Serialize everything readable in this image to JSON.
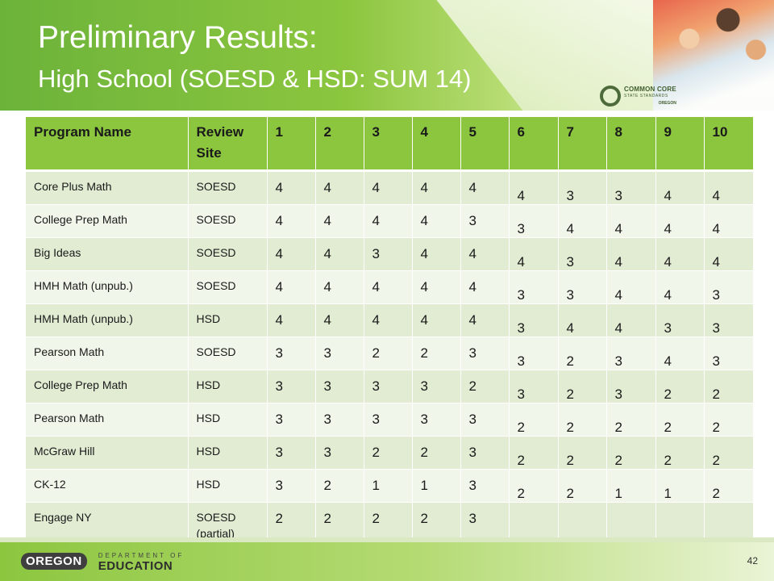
{
  "slide": {
    "title": "Preliminary Results:",
    "subtitle": "High School (SOESD & HSD: SUM 14)",
    "number": "42"
  },
  "ccss_logo": {
    "line1": "COMMON CORE",
    "line2": "STATE STANDARDS",
    "line3": "OREGON"
  },
  "footer_logo": {
    "state": "OREGON",
    "dept_line": "DEPARTMENT OF",
    "edu_line": "EDUCATION"
  },
  "table": {
    "headers": [
      "Program Name",
      "Review Site",
      "1",
      "2",
      "3",
      "4",
      "5",
      "6",
      "7",
      "8",
      "9",
      "10"
    ],
    "rows": [
      {
        "program": "Core Plus Math",
        "site": "SOESD",
        "scores": [
          "4",
          "4",
          "4",
          "4",
          "4",
          "4",
          "3",
          "3",
          "4",
          "4"
        ]
      },
      {
        "program": "College Prep Math",
        "site": "SOESD",
        "scores": [
          "4",
          "4",
          "4",
          "4",
          "3",
          "3",
          "4",
          "4",
          "4",
          "4"
        ]
      },
      {
        "program": "Big Ideas",
        "site": "SOESD",
        "scores": [
          "4",
          "4",
          "3",
          "4",
          "4",
          "4",
          "3",
          "4",
          "4",
          "4"
        ]
      },
      {
        "program": "HMH Math (unpub.)",
        "site": "SOESD",
        "scores": [
          "4",
          "4",
          "4",
          "4",
          "4",
          "3",
          "3",
          "4",
          "4",
          "3"
        ]
      },
      {
        "program": "HMH Math (unpub.)",
        "site": "HSD",
        "scores": [
          "4",
          "4",
          "4",
          "4",
          "4",
          "3",
          "4",
          "4",
          "3",
          "3"
        ]
      },
      {
        "program": "Pearson Math",
        "site": "SOESD",
        "scores": [
          "3",
          "3",
          "2",
          "2",
          "3",
          "3",
          "2",
          "3",
          "4",
          "3"
        ]
      },
      {
        "program": "College Prep Math",
        "site": "HSD",
        "scores": [
          "3",
          "3",
          "3",
          "3",
          "2",
          "3",
          "2",
          "3",
          "2",
          "2"
        ]
      },
      {
        "program": "Pearson Math",
        "site": "HSD",
        "scores": [
          "3",
          "3",
          "3",
          "3",
          "3",
          "2",
          "2",
          "2",
          "2",
          "2"
        ]
      },
      {
        "program": "McGraw Hill",
        "site": "HSD",
        "scores": [
          "3",
          "3",
          "2",
          "2",
          "3",
          "2",
          "2",
          "2",
          "2",
          "2"
        ]
      },
      {
        "program": "CK-12",
        "site": "HSD",
        "scores": [
          "3",
          "2",
          "1",
          "1",
          "3",
          "2",
          "2",
          "1",
          "1",
          "2"
        ]
      },
      {
        "program": "Engage NY",
        "site": "SOESD (partial)",
        "scores": [
          "2",
          "2",
          "2",
          "2",
          "3",
          "",
          "",
          "",
          "",
          ""
        ]
      }
    ]
  }
}
